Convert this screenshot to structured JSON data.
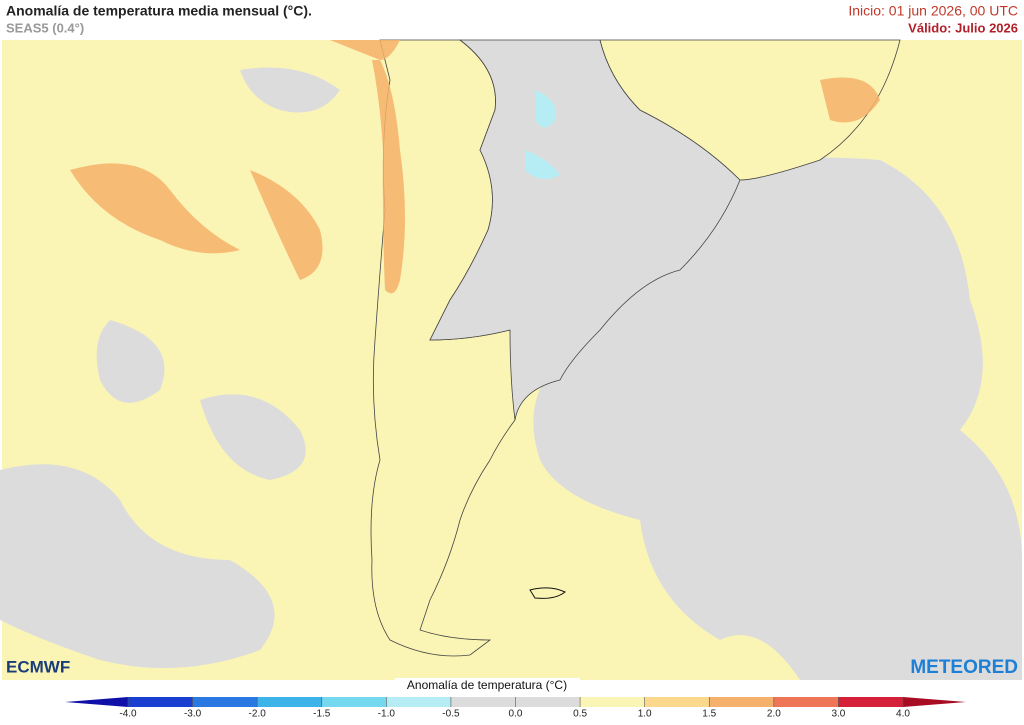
{
  "header": {
    "title": "Anomalía de temperatura media mensual (°C).",
    "subtitle": "SEAS5 (0.4°)",
    "start": "Inicio: 01 jun 2026, 00 UTC",
    "valid": "Válido: Julio 2026"
  },
  "logos": {
    "left": "ECMWF",
    "right": "METEORED"
  },
  "colorbar": {
    "label": "Anomalía de temperatura (°C)",
    "ticks": [
      {
        "value": -4,
        "label": "-4.0"
      },
      {
        "value": -3,
        "label": "-3.0"
      },
      {
        "value": -2,
        "label": "-2.0"
      },
      -1.5,
      {
        "value": -1,
        "label": "-1.0"
      },
      -0.5,
      {
        "value": 0,
        "label": "0.0"
      },
      0.5,
      {
        "value": 1,
        "label": "1.0"
      },
      1.5,
      {
        "value": 2,
        "label": "2.0"
      },
      {
        "value": 3,
        "label": "3.0"
      },
      {
        "value": 4,
        "label": "4.0"
      }
    ],
    "colors": [
      "#1010a8",
      "#1a3ed0",
      "#2a78e2",
      "#3cb4ea",
      "#74d8ef",
      "#b6edf5",
      "#dcdcdc",
      "#dcdcdc",
      "#fbf5b5",
      "#fbd88c",
      "#f5b16b",
      "#ee7556",
      "#d6203a",
      "#a80c22"
    ]
  }
}
